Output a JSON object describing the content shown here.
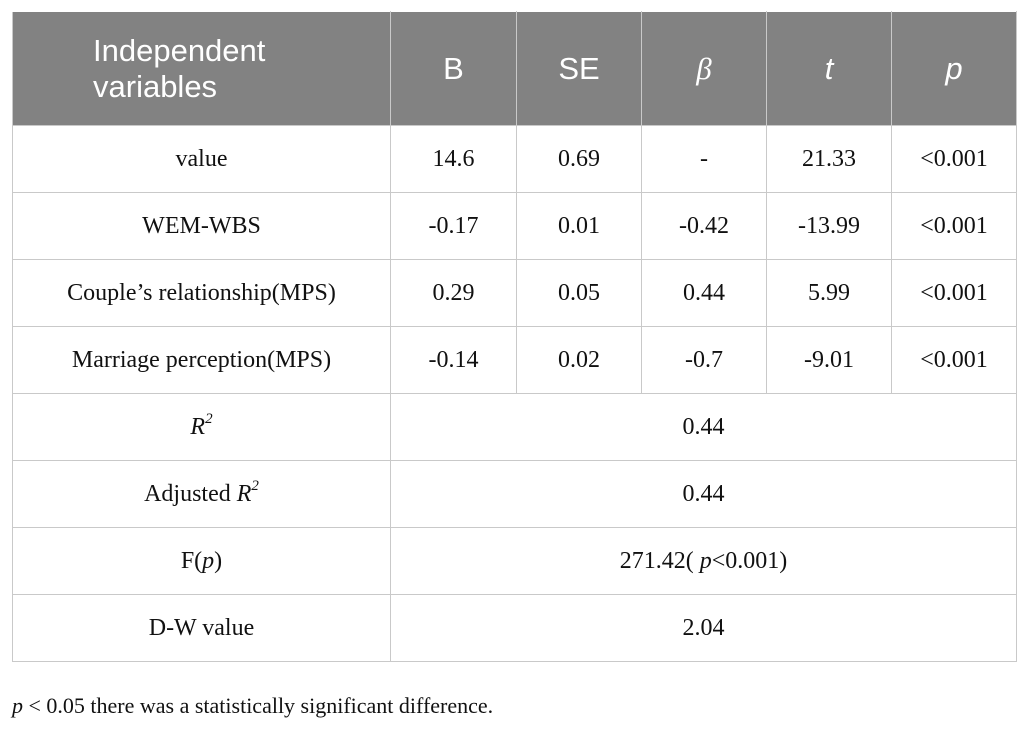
{
  "header": {
    "independent_variables": "Independent variables",
    "b": "B",
    "se": "SE",
    "beta": "β",
    "t": "t",
    "p": "p"
  },
  "rows": [
    {
      "variable": "value",
      "b": "14.6",
      "se": "0.69",
      "beta": "-",
      "t": "21.33",
      "p": "<0.001"
    },
    {
      "variable": "WEM-WBS",
      "b": "-0.17",
      "se": "0.01",
      "beta": "-0.42",
      "t": "-13.99",
      "p": "<0.001"
    },
    {
      "variable": "Couple’s relationship(MPS)",
      "b": "0.29",
      "se": "0.05",
      "beta": "0.44",
      "t": "5.99",
      "p": "<0.001"
    },
    {
      "variable": "Marriage perception(MPS)",
      "b": "-0.14",
      "se": "0.02",
      "beta": "-0.7",
      "t": "-9.01",
      "p": "<0.001"
    }
  ],
  "summary": {
    "r2": {
      "label": "R",
      "sup": "2",
      "value": "0.44"
    },
    "adjusted_r2": {
      "label_prefix": "Adjusted ",
      "label": "R",
      "sup": "2",
      "value": "0.44"
    },
    "f": {
      "label_prefix": "F(",
      "label_italic": "p",
      "label_suffix": ")",
      "value_prefix": "271.42( ",
      "value_italic": "p",
      "value_suffix": "<0.001)"
    },
    "dw": {
      "label": "D-W value",
      "value": "2.04"
    }
  },
  "footnote": {
    "italic": "p",
    "text": " < 0.05 there was a statistically significant difference."
  }
}
